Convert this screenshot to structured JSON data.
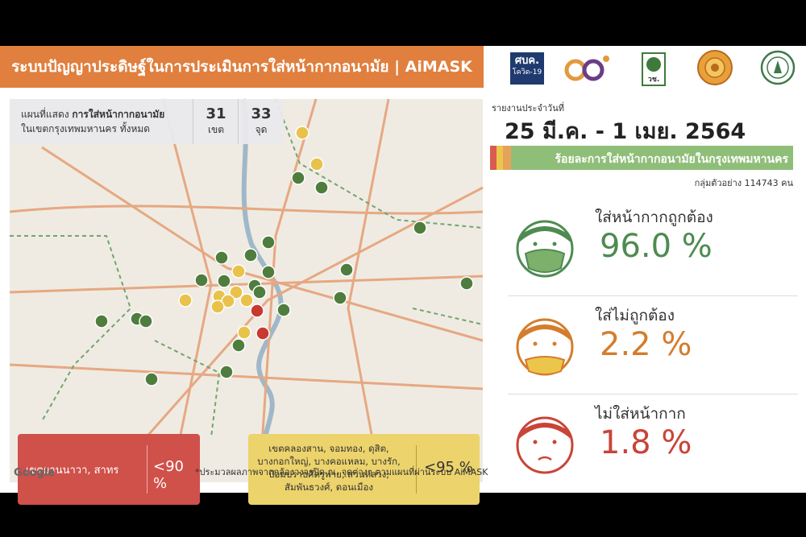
{
  "header": {
    "title": "ระบบปัญญาประดิษฐ์ในการประเมินการใส่หน้ากากอนามัย | AiMASK"
  },
  "logos": {
    "sbk_line1": "ศบค.",
    "sbk_line2": "โควิด-19",
    "nrct": "วช."
  },
  "map": {
    "info_prefix": "แผนที่แสดง ",
    "info_bold": "การใส่หน้ากากอนามัย",
    "info_line2": "ในเขตกรุงเทพมหานคร ทั้งหมด",
    "district_count": "31",
    "district_unit": "เขต",
    "point_count": "33",
    "point_unit": "จุด",
    "red_districts": "เขตยานนาวา, สาทร",
    "red_threshold": "<90 %",
    "yellow_districts": "เขตคลองสาน, จอมทอง, ดุสิต, บางกอกใหญ่, บางคอแหลม, บางรัก, ป้อมปราบศัตรูพ่าย, สวนหลวง, สัมพันธวงศ์, ดอนเมือง",
    "yellow_threshold": "<95 %",
    "google": "Google",
    "footnote": "*ประมวลผลภาพจากกล้องวงจรปิด ณ. จุดต่างๆ ตามแผนที่ผ่านระบบ AiMASK"
  },
  "report": {
    "label": "รายงานประจำวันที่",
    "date": "25 มี.ค. - 1 เมย. 2564",
    "bar_title": "ร้อยละการใส่หน้ากากอนามัยในกรุงเทพมหานคร",
    "sample": "กลุ่มตัวอย่าง 114743 คน"
  },
  "stats": [
    {
      "label": "ใส่หน้ากากถูกต้อง",
      "value": "96.0 %",
      "color": "#4e8b51"
    },
    {
      "label": "ใส่ไม่ถูกต้อง",
      "value": "2.2 %",
      "color": "#d47d2c"
    },
    {
      "label": "ไม่ใส่หน้ากาก",
      "value": "1.8 %",
      "color": "#c94437"
    }
  ],
  "colors": {
    "header": "#e07f3e",
    "green": "#4e8b51",
    "yellow": "#ecc64b",
    "red": "#c94437"
  },
  "icons": [
    "face-mask-correct-icon",
    "face-mask-incorrect-icon",
    "face-no-mask-icon"
  ]
}
